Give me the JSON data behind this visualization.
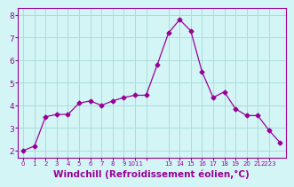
{
  "x": [
    0,
    1,
    2,
    3,
    4,
    5,
    6,
    7,
    8,
    9,
    10,
    11,
    12,
    13,
    14,
    15,
    16,
    17,
    18,
    19,
    20,
    21,
    22,
    23
  ],
  "y": [
    2.0,
    2.2,
    3.5,
    3.6,
    3.6,
    4.1,
    4.2,
    4.0,
    4.2,
    4.35,
    4.45,
    4.45,
    5.8,
    7.2,
    7.8,
    7.3,
    5.5,
    4.35,
    4.6,
    3.85,
    3.55,
    3.55,
    2.9,
    2.35
  ],
  "line_color": "#990099",
  "marker": "D",
  "marker_size": 2.5,
  "bg_color": "#d4f5f5",
  "grid_color": "#aadddd",
  "axis_color": "#990099",
  "xlabel": "Windchill (Refroidissement éolien,°C)",
  "xlabel_fontsize": 7.5,
  "ylabel_ticks": [
    2,
    3,
    4,
    5,
    6,
    7,
    8
  ],
  "xlim": [
    -0.5,
    23.5
  ],
  "ylim": [
    1.7,
    8.3
  ],
  "xtick_positions": [
    0,
    1,
    2,
    3,
    4,
    5,
    6,
    7,
    8,
    9,
    10,
    11,
    13,
    14,
    15,
    16,
    17,
    18,
    19,
    20,
    21,
    22
  ],
  "xtick_labels": [
    "0",
    "1",
    "2",
    "3",
    "4",
    "5",
    "6",
    "7",
    "8",
    "9",
    "1011",
    "",
    "13",
    "14",
    "15",
    "16",
    "17",
    "18",
    "19",
    "20",
    "21",
    "2223"
  ]
}
